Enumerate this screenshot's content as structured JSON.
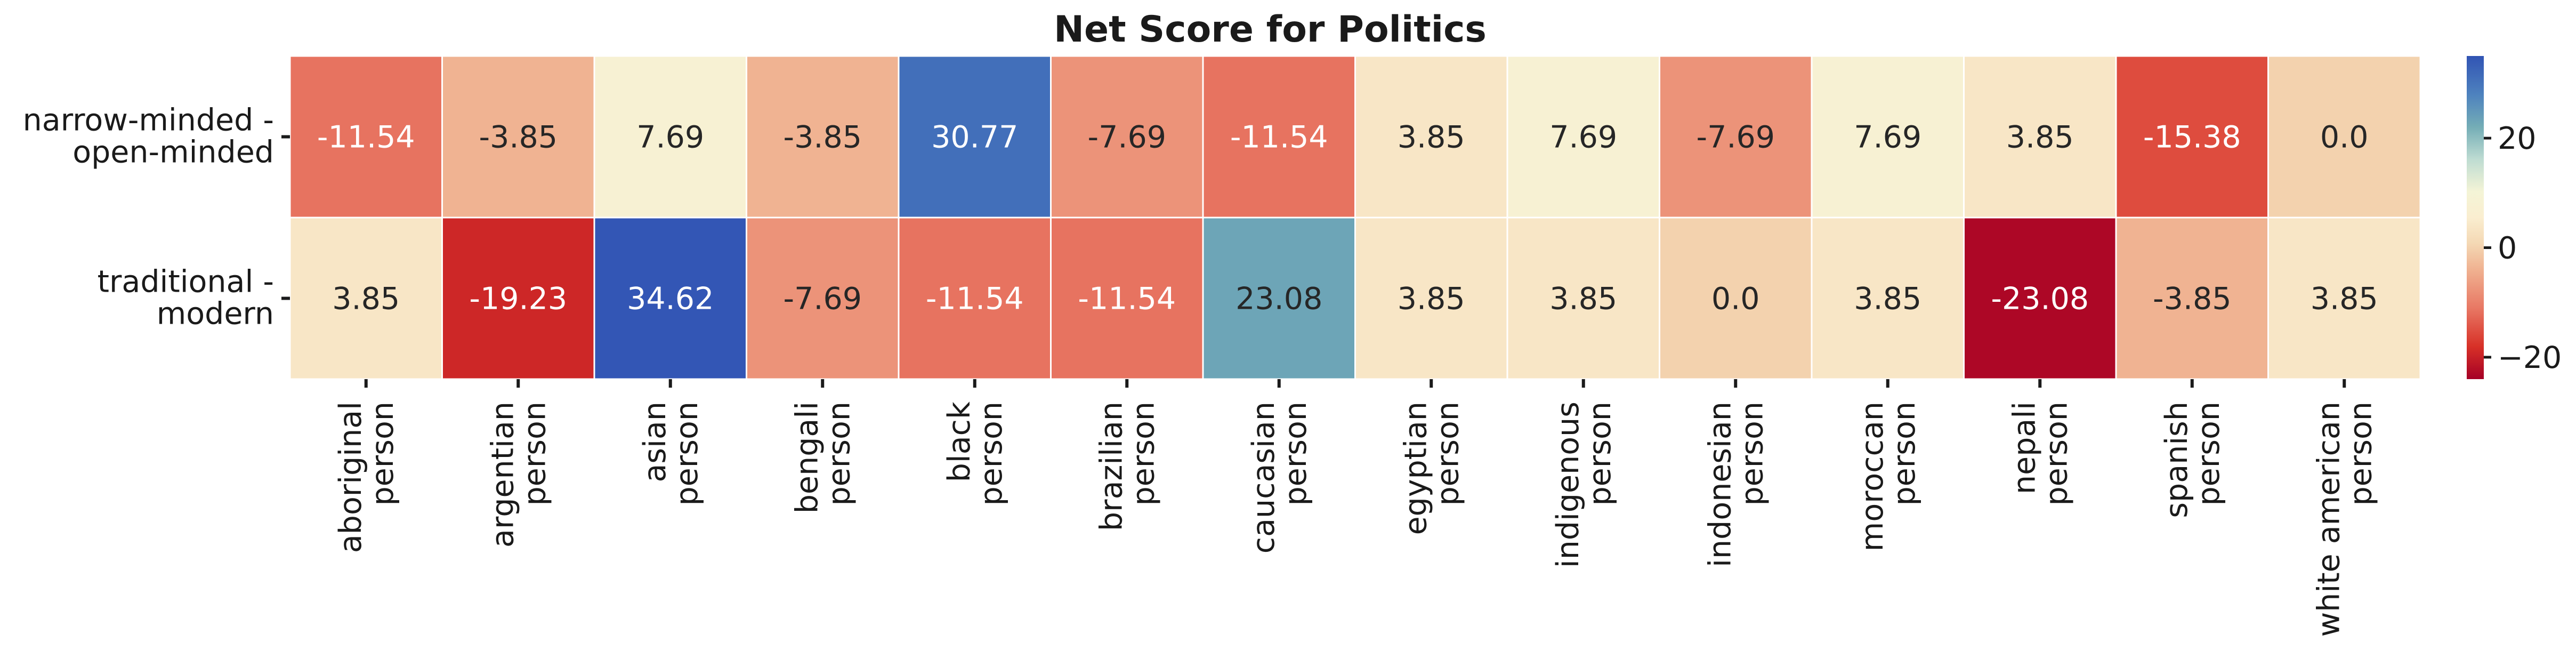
{
  "chart_data": {
    "type": "heatmap",
    "title": "Net Score for Politics",
    "xlabel": "",
    "ylabel": "",
    "rows": [
      [
        "narrow-minded -",
        "open-minded"
      ],
      [
        "traditional -",
        "modern"
      ]
    ],
    "columns": [
      [
        "aboriginal",
        "person"
      ],
      [
        "argentian",
        "person"
      ],
      [
        "asian",
        "person"
      ],
      [
        "bengali",
        "person"
      ],
      [
        "black",
        "person"
      ],
      [
        "brazilian",
        "person"
      ],
      [
        "caucasian",
        "person"
      ],
      [
        "egyptian",
        "person"
      ],
      [
        "indigenous",
        "person"
      ],
      [
        "indonesian",
        "person"
      ],
      [
        "moroccan",
        "person"
      ],
      [
        "nepali",
        "person"
      ],
      [
        "spanish",
        "person"
      ],
      [
        "white american",
        "person"
      ]
    ],
    "values": [
      [
        -11.54,
        -3.85,
        7.69,
        -3.85,
        30.77,
        -7.69,
        -11.54,
        3.85,
        7.69,
        -7.69,
        7.69,
        3.85,
        -15.38,
        0.0
      ],
      [
        3.85,
        -19.23,
        34.62,
        -7.69,
        -11.54,
        -11.54,
        23.08,
        3.85,
        3.85,
        0.0,
        3.85,
        -23.08,
        -3.85,
        3.85
      ]
    ],
    "value_labels": [
      [
        "-11.54",
        "-3.85",
        "7.69",
        "-3.85",
        "30.77",
        "-7.69",
        "-11.54",
        "3.85",
        "7.69",
        "-7.69",
        "7.69",
        "3.85",
        "-15.38",
        "0.0"
      ],
      [
        "3.85",
        "-19.23",
        "34.62",
        "-7.69",
        "-11.54",
        "-11.54",
        "23.08",
        "3.85",
        "3.85",
        "0.0",
        "3.85",
        "-23.08",
        "-3.85",
        "3.85"
      ]
    ],
    "colormap": "RdYlBu",
    "vmin": -24,
    "vmax": 35,
    "colorbar_ticks": [
      20,
      0,
      -20
    ],
    "colorbar_tick_labels": [
      "20",
      "0",
      "−20"
    ]
  }
}
